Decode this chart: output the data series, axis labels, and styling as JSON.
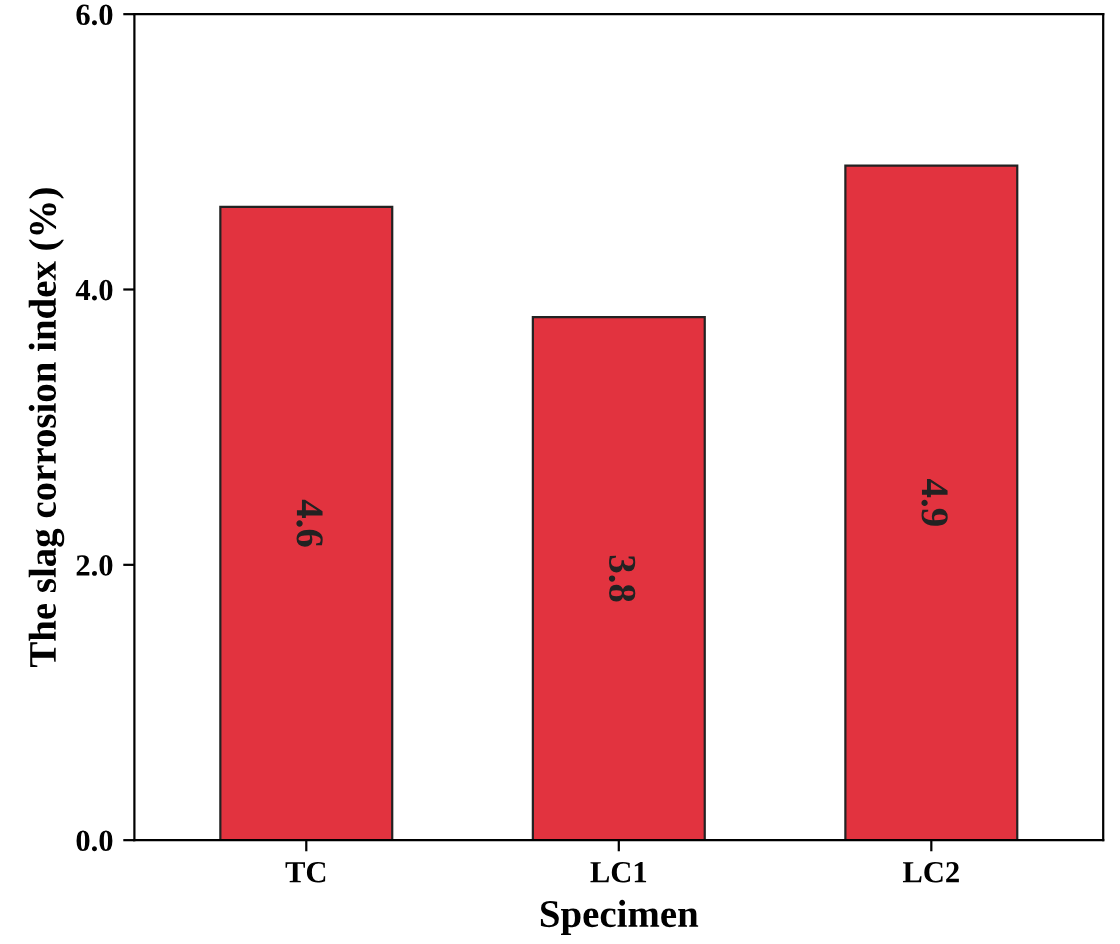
{
  "chart_data": {
    "type": "bar",
    "xlabel": "Specimen",
    "ylabel": "The slag corrosion index (%)",
    "categories": [
      "TC",
      "LC1",
      "LC2"
    ],
    "values": [
      4.6,
      3.8,
      4.9
    ],
    "color": "#e2333f",
    "data_labels": true,
    "ylim": [
      0,
      6
    ],
    "yticks": [
      {
        "value": 0,
        "label": "0.0"
      },
      {
        "value": 2,
        "label": "2.0"
      },
      {
        "value": 4,
        "label": "4.0"
      },
      {
        "value": 6,
        "label": "6.0"
      }
    ],
    "grid": false
  }
}
